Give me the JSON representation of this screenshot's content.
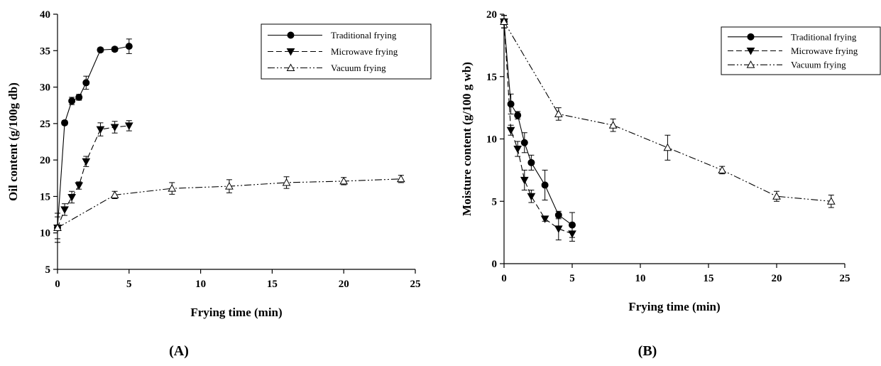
{
  "chart_data": [
    {
      "type": "line",
      "panel_label": "(A)",
      "xlabel": "Frying time (min)",
      "ylabel": "Oil content (g/100g db)",
      "xlim": [
        0,
        25
      ],
      "ylim": [
        5,
        40
      ],
      "xticks": [
        0,
        5,
        10,
        15,
        20,
        25
      ],
      "yticks": [
        5,
        10,
        15,
        20,
        25,
        30,
        35,
        40
      ],
      "legend_position": "top-right",
      "grid": false,
      "series": [
        {
          "name": "Traditional frying",
          "marker": "filled-circle",
          "line_style": "solid",
          "x": [
            0,
            0.5,
            1,
            1.5,
            2,
            3,
            4,
            5
          ],
          "y": [
            10.7,
            25.1,
            28.1,
            28.6,
            30.6,
            35.1,
            35.2,
            35.6
          ],
          "err": [
            2.0,
            0.3,
            0.5,
            0.4,
            0.9,
            0.3,
            0.3,
            1.0
          ]
        },
        {
          "name": "Microwave frying",
          "marker": "filled-triangle-down",
          "line_style": "dashed",
          "x": [
            0,
            0.5,
            1,
            1.5,
            2,
            3,
            4,
            5
          ],
          "y": [
            10.7,
            13.2,
            14.9,
            16.5,
            19.8,
            24.2,
            24.5,
            24.7
          ],
          "err": [
            2.0,
            0.8,
            0.8,
            0.5,
            0.7,
            0.9,
            0.8,
            0.7
          ]
        },
        {
          "name": "Vacuum frying",
          "marker": "open-triangle-up",
          "line_style": "dash-dot-dot",
          "x": [
            0,
            4,
            8,
            12,
            16,
            20,
            24
          ],
          "y": [
            10.7,
            15.2,
            16.1,
            16.4,
            16.9,
            17.1,
            17.4
          ],
          "err": [
            1.5,
            0.5,
            0.8,
            0.9,
            0.8,
            0.5,
            0.5
          ]
        }
      ]
    },
    {
      "type": "line",
      "panel_label": "(B)",
      "xlabel": "Frying time (min)",
      "ylabel": "Moisture content (g/100 g wb)",
      "xlim": [
        0,
        25
      ],
      "ylim": [
        0,
        20
      ],
      "xticks": [
        0,
        5,
        10,
        15,
        20,
        25
      ],
      "yticks": [
        0,
        5,
        10,
        15,
        20
      ],
      "legend_position": "top-right",
      "grid": false,
      "series": [
        {
          "name": "Traditional frying",
          "marker": "filled-circle",
          "line_style": "solid",
          "x": [
            0,
            0.5,
            1,
            1.5,
            2,
            3,
            4,
            5
          ],
          "y": [
            19.4,
            12.8,
            11.9,
            9.7,
            8.1,
            6.3,
            3.9,
            3.1
          ],
          "err": [
            0.5,
            0.8,
            0.3,
            0.8,
            0.6,
            1.2,
            0.3,
            1.0
          ]
        },
        {
          "name": "Microwave frying",
          "marker": "filled-triangle-down",
          "line_style": "dashed",
          "x": [
            0,
            0.5,
            1,
            1.5,
            2,
            3,
            4,
            5
          ],
          "y": [
            19.4,
            10.7,
            9.2,
            6.7,
            5.4,
            3.6,
            2.8,
            2.4
          ],
          "err": [
            0.5,
            0.4,
            0.6,
            0.8,
            0.5,
            0.2,
            0.9,
            0.6
          ]
        },
        {
          "name": "Vacuum frying",
          "marker": "open-triangle-up",
          "line_style": "dash-dot-dot",
          "x": [
            0,
            4,
            8,
            12,
            16,
            20,
            24
          ],
          "y": [
            19.4,
            12.0,
            11.1,
            9.3,
            7.5,
            5.4,
            5.0
          ],
          "err": [
            0.5,
            0.5,
            0.5,
            1.0,
            0.3,
            0.4,
            0.5
          ]
        }
      ]
    }
  ]
}
